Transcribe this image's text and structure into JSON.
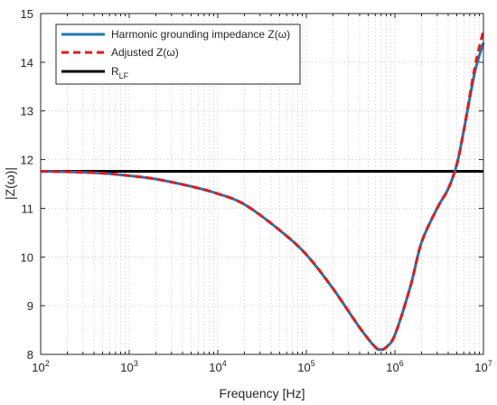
{
  "chart_data": {
    "type": "line",
    "title": "",
    "xlabel": "Frequency [Hz]",
    "ylabel": "|Z(ω)|",
    "xscale": "log",
    "xlim": [
      100,
      10000000
    ],
    "ylim": [
      8,
      15
    ],
    "xticks": [
      {
        "value": 100,
        "base": "10",
        "exp": "2"
      },
      {
        "value": 1000,
        "base": "10",
        "exp": "3"
      },
      {
        "value": 10000,
        "base": "10",
        "exp": "4"
      },
      {
        "value": 100000,
        "base": "10",
        "exp": "5"
      },
      {
        "value": 1000000,
        "base": "10",
        "exp": "6"
      },
      {
        "value": 10000000,
        "base": "10",
        "exp": "7"
      }
    ],
    "yticks": [
      8,
      9,
      10,
      11,
      12,
      13,
      14,
      15
    ],
    "grid": "dotted major and minor",
    "legend_position": "top-left",
    "series": [
      {
        "name": "Harmonic grounding impedance Z(ω)",
        "color": "#1f77b4",
        "style": "solid",
        "x": [
          100,
          200,
          500,
          1000,
          2000,
          5000,
          10000,
          20000,
          50000,
          100000,
          200000,
          400000,
          600000,
          700000,
          800000,
          1000000,
          1500000,
          2000000,
          3000000,
          4000000,
          5000000,
          6000000,
          8000000,
          10000000
        ],
        "y": [
          11.76,
          11.75,
          11.72,
          11.67,
          11.6,
          11.45,
          11.3,
          11.08,
          10.55,
          10.05,
          9.35,
          8.55,
          8.15,
          8.1,
          8.15,
          8.4,
          9.4,
          10.3,
          11.0,
          11.4,
          11.9,
          12.6,
          13.8,
          14.4
        ]
      },
      {
        "name": "Adjusted Z(ω)",
        "color": "#e31a1c",
        "style": "dashed",
        "x": [
          100,
          200,
          500,
          1000,
          2000,
          5000,
          10000,
          20000,
          50000,
          100000,
          200000,
          400000,
          600000,
          700000,
          800000,
          1000000,
          1500000,
          2000000,
          3000000,
          4000000,
          5000000,
          6000000,
          8000000,
          10000000
        ],
        "y": [
          11.76,
          11.75,
          11.72,
          11.67,
          11.6,
          11.45,
          11.3,
          11.08,
          10.55,
          10.05,
          9.35,
          8.55,
          8.15,
          8.1,
          8.15,
          8.4,
          9.4,
          10.3,
          11.0,
          11.4,
          11.9,
          12.6,
          13.9,
          14.65
        ]
      },
      {
        "name": "R",
        "name_subscript": "LF",
        "color": "#000000",
        "style": "solid",
        "x": [
          100,
          10000000
        ],
        "y": [
          11.76,
          11.76
        ]
      }
    ]
  }
}
